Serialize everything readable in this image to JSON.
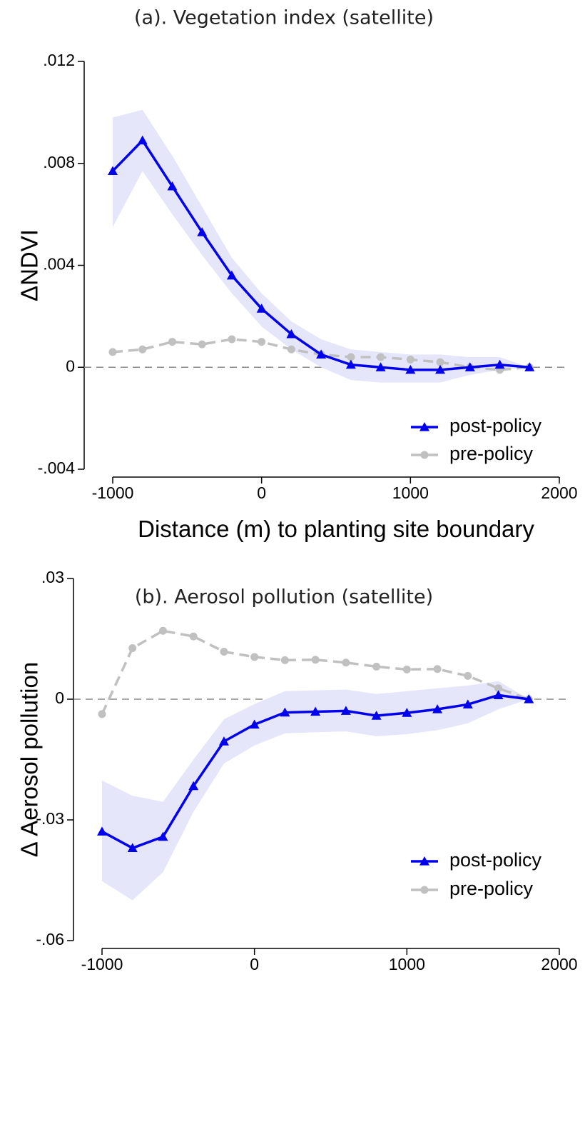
{
  "chart_data": [
    {
      "type": "line",
      "title": "(a). Vegetation index (satellite)",
      "xlabel": "Distance (m) to planting site boundary",
      "ylabel": "ΔNDVI",
      "xlim": [
        -1000,
        2000
      ],
      "ylim": [
        -0.004,
        0.012
      ],
      "x_ticks": [
        -1000,
        0,
        1000,
        2000
      ],
      "x_tick_labels": [
        "-1000",
        "0",
        "1000",
        "2000"
      ],
      "y_ticks": [
        -0.004,
        0,
        0.004,
        0.008,
        0.012
      ],
      "y_tick_labels": [
        "-.004",
        "0",
        ".004",
        ".008",
        ".012"
      ],
      "reference_line_y": 0,
      "legend_position": "bottom-right",
      "series": [
        {
          "name": "post-policy",
          "color": "#0000ee",
          "marker": "triangle",
          "style": "solid",
          "x": [
            -1000,
            -800,
            -600,
            -400,
            -200,
            0,
            200,
            400,
            600,
            800,
            1000,
            1200,
            1400,
            1600,
            1800
          ],
          "values": [
            0.0077,
            0.0089,
            0.0071,
            0.0053,
            0.0036,
            0.0023,
            0.0013,
            0.0005,
            0.0001,
            0.0,
            -0.0001,
            -0.0001,
            0.0,
            0.0001,
            0.0
          ],
          "ci_low": [
            0.0055,
            0.0077,
            0.006,
            0.0044,
            0.0029,
            0.0016,
            0.0007,
            0.0,
            -0.0005,
            -0.0006,
            -0.0006,
            -0.0006,
            -0.0003,
            -0.0001,
            0.0
          ],
          "ci_high": [
            0.0098,
            0.0101,
            0.0083,
            0.0063,
            0.0043,
            0.0029,
            0.0018,
            0.0011,
            0.0007,
            0.0006,
            0.0005,
            0.0005,
            0.0004,
            0.0004,
            0.0
          ]
        },
        {
          "name": "pre-policy",
          "color": "#c0c0c0",
          "marker": "circle",
          "style": "dashed",
          "x": [
            -1000,
            -800,
            -600,
            -400,
            -200,
            0,
            200,
            400,
            600,
            800,
            1000,
            1200,
            1400,
            1600,
            1800
          ],
          "values": [
            0.0006,
            0.0007,
            0.001,
            0.0009,
            0.0011,
            0.001,
            0.0007,
            0.0005,
            0.0004,
            0.0004,
            0.0003,
            0.0002,
            0.0,
            -0.0001,
            0.0
          ]
        }
      ]
    },
    {
      "type": "line",
      "title": "(b). Aerosol pollution (satellite)",
      "xlabel": "Distance (m) to planting site boundary",
      "ylabel": "Δ Aerosol pollution",
      "xlim": [
        -1000,
        2000
      ],
      "ylim": [
        -0.06,
        0.03
      ],
      "x_ticks": [
        -1000,
        0,
        1000,
        2000
      ],
      "x_tick_labels": [
        "-1000",
        "0",
        "1000",
        "2000"
      ],
      "y_ticks": [
        -0.06,
        -0.03,
        0,
        0.03
      ],
      "y_tick_labels": [
        "-.06",
        "-.03",
        "0",
        ".03"
      ],
      "reference_line_y": 0,
      "legend_position": "bottom-right",
      "series": [
        {
          "name": "post-policy",
          "color": "#0000ee",
          "marker": "triangle",
          "style": "solid",
          "x": [
            -1000,
            -800,
            -600,
            -400,
            -200,
            0,
            200,
            400,
            600,
            800,
            1000,
            1200,
            1400,
            1600,
            1800
          ],
          "values": [
            -0.0329,
            -0.037,
            -0.0342,
            -0.0216,
            -0.0105,
            -0.0063,
            -0.0033,
            -0.0031,
            -0.0029,
            -0.0041,
            -0.0034,
            -0.0025,
            -0.0013,
            0.001,
            0.0
          ],
          "ci_low": [
            -0.0452,
            -0.05,
            -0.043,
            -0.028,
            -0.016,
            -0.0115,
            -0.0085,
            -0.0082,
            -0.008,
            -0.0092,
            -0.0087,
            -0.0077,
            -0.006,
            -0.0025,
            0.0
          ],
          "ci_high": [
            -0.0202,
            -0.024,
            -0.0255,
            -0.015,
            -0.005,
            -0.0012,
            0.002,
            0.0022,
            0.0024,
            0.0013,
            0.002,
            0.0027,
            0.0034,
            0.0045,
            0.0
          ]
        },
        {
          "name": "pre-policy",
          "color": "#c0c0c0",
          "marker": "circle",
          "style": "dashed",
          "x": [
            -1000,
            -800,
            -600,
            -400,
            -200,
            0,
            200,
            400,
            600,
            800,
            1000,
            1200,
            1400,
            1600,
            1800
          ],
          "values": [
            -0.0037,
            0.0127,
            0.017,
            0.0156,
            0.0118,
            0.0105,
            0.0097,
            0.0098,
            0.0091,
            0.0081,
            0.0074,
            0.0075,
            0.0058,
            0.0027,
            0.0
          ]
        }
      ]
    }
  ]
}
